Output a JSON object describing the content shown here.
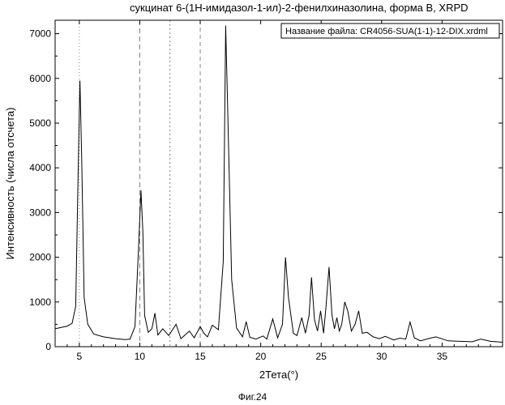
{
  "title": "сукцинат 6-(1Н-имидазол-1-ил)-2-фенилхиназолина, форма В, XRPD",
  "caption": "Фиг.24",
  "chart_data": {
    "type": "line",
    "title": "сукцинат 6-(1Н-имидазол-1-ил)-2-фенилхиназолина, форма В, XRPD",
    "xlabel": "2Тета(°)",
    "ylabel": "Интенсивность (числа отсчета)",
    "xlim": [
      3,
      40
    ],
    "ylim": [
      0,
      7300
    ],
    "xticks": [
      5,
      10,
      15,
      20,
      25,
      30,
      35
    ],
    "yticks": [
      0,
      1000,
      2000,
      3000,
      4000,
      5000,
      6000,
      7000
    ],
    "legend_text": "Название файла: CR4056-SUA(1-1)-12-DIX.xrdml",
    "legend_position": "top-right",
    "grid": "vertical dotted lines at selected positions",
    "line_color": "#000000",
    "x": [
      3.0,
      3.5,
      4.0,
      4.4,
      4.7,
      4.9,
      5.05,
      5.2,
      5.4,
      5.7,
      6.2,
      7.0,
      8.0,
      8.8,
      9.2,
      9.6,
      9.9,
      10.1,
      10.25,
      10.4,
      10.7,
      11.0,
      11.25,
      11.5,
      11.9,
      12.4,
      13.0,
      13.4,
      14.1,
      14.5,
      15.0,
      15.3,
      15.6,
      16.0,
      16.5,
      16.9,
      17.1,
      17.3,
      17.6,
      18.0,
      18.5,
      18.8,
      19.1,
      19.6,
      20.2,
      20.5,
      21.0,
      21.4,
      21.8,
      22.05,
      22.3,
      22.7,
      23.0,
      23.4,
      23.7,
      24.0,
      24.2,
      24.45,
      24.7,
      24.95,
      25.2,
      25.4,
      25.65,
      25.9,
      26.1,
      26.3,
      26.5,
      26.7,
      26.95,
      27.2,
      27.5,
      27.8,
      28.1,
      28.4,
      28.8,
      29.3,
      29.8,
      30.3,
      31.0,
      31.5,
      32.0,
      32.35,
      32.7,
      33.2,
      34.0,
      34.5,
      35.5,
      36.5,
      37.5,
      38.2,
      39.0,
      40.0
    ],
    "y": [
      400,
      430,
      460,
      520,
      900,
      3800,
      5950,
      4200,
      1100,
      500,
      280,
      220,
      180,
      160,
      170,
      450,
      2200,
      3500,
      2600,
      700,
      320,
      400,
      750,
      260,
      400,
      250,
      500,
      180,
      350,
      200,
      450,
      300,
      220,
      480,
      380,
      1900,
      7180,
      5000,
      1500,
      420,
      220,
      560,
      210,
      170,
      240,
      170,
      620,
      200,
      500,
      2000,
      1100,
      300,
      250,
      650,
      300,
      700,
      1550,
      600,
      350,
      800,
      300,
      900,
      1780,
      700,
      400,
      650,
      350,
      500,
      1000,
      800,
      350,
      500,
      800,
      300,
      320,
      220,
      180,
      230,
      150,
      190,
      170,
      550,
      200,
      130,
      190,
      220,
      130,
      120,
      110,
      170,
      120,
      100
    ]
  }
}
